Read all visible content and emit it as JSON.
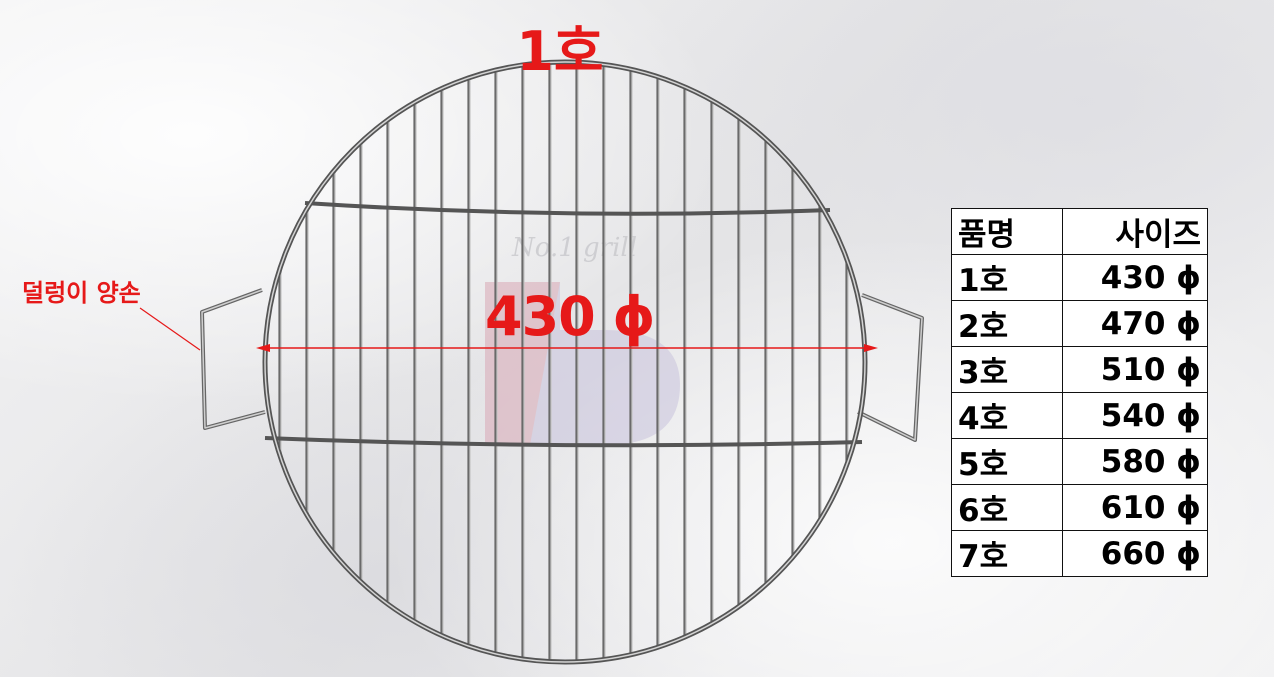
{
  "title": "1호",
  "handle_label": "덜렁이 양손",
  "diameter_label": "430 ϕ",
  "watermark_text": "No.1 grill",
  "accent_color": "#e61919",
  "size_table": {
    "headers": [
      "품명",
      "사이즈"
    ],
    "rows": [
      {
        "name": "1호",
        "size": "430 ϕ"
      },
      {
        "name": "2호",
        "size": "470 ϕ"
      },
      {
        "name": "3호",
        "size": "510 ϕ"
      },
      {
        "name": "4호",
        "size": "540 ϕ"
      },
      {
        "name": "5호",
        "size": "580 ϕ"
      },
      {
        "name": "6호",
        "size": "610 ϕ"
      },
      {
        "name": "7호",
        "size": "660 ϕ"
      }
    ]
  }
}
